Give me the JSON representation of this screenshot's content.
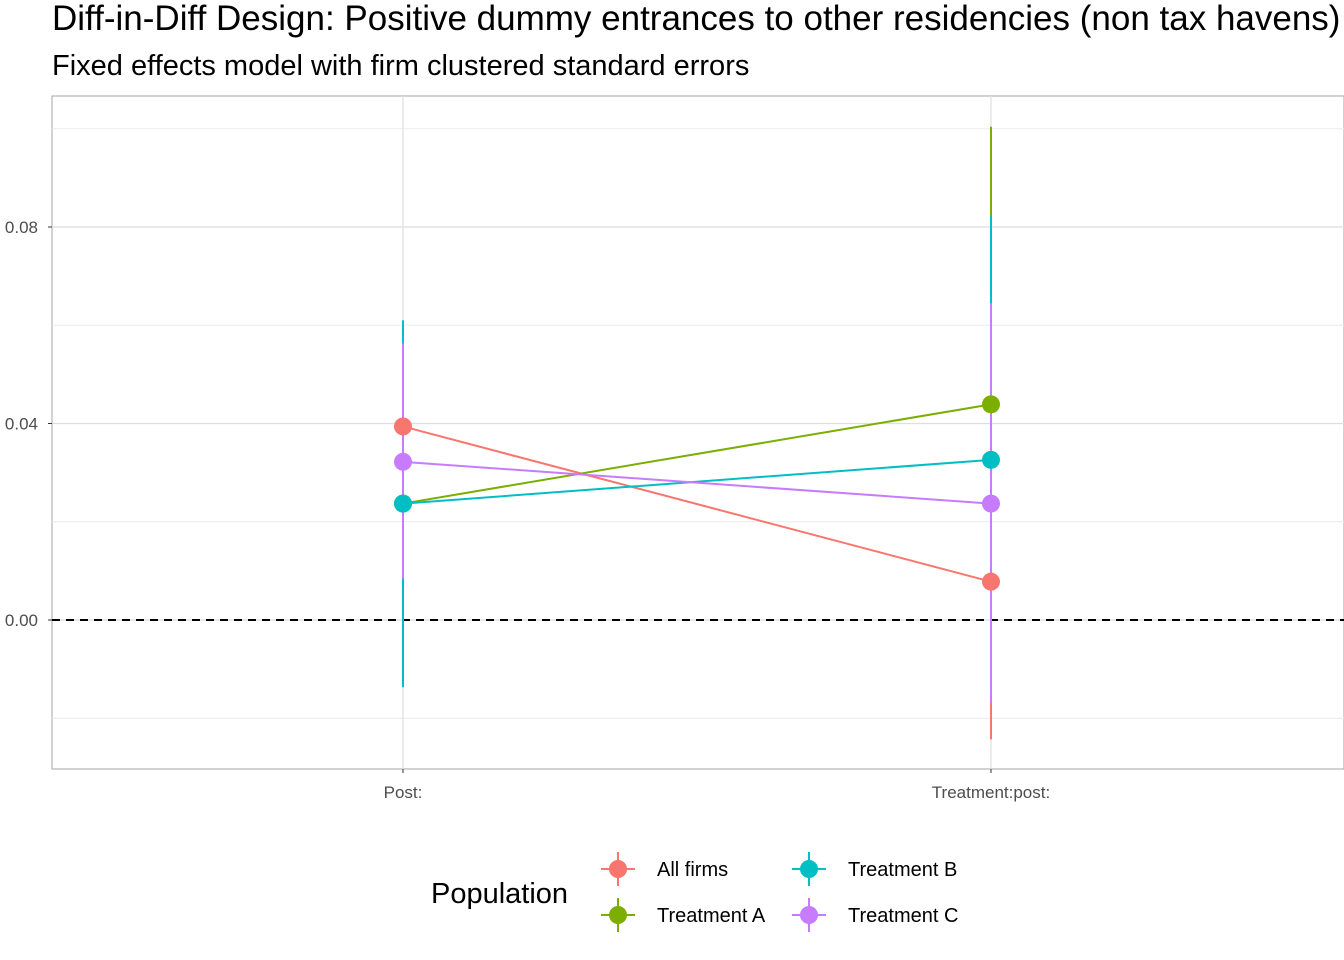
{
  "chart_data": {
    "type": "scatter",
    "title": "Diff-in-Diff Design: Positive dummy entrances to other residencies (non tax havens)",
    "subtitle": "Fixed effects model with firm clustered standard errors",
    "categories": [
      "Post:",
      "Treatment:post:"
    ],
    "y_ticks": [
      {
        "value": 0.0,
        "label": "0.00"
      },
      {
        "value": 0.04,
        "label": "0.04"
      },
      {
        "value": 0.08,
        "label": "0.08"
      }
    ],
    "ylim": [
      -0.03,
      0.107
    ],
    "reference_line": {
      "value": 0,
      "style": "dashed"
    },
    "grid": true,
    "legend": {
      "title": "Population",
      "position": "bottom"
    },
    "series": [
      {
        "name": "All firms",
        "color": "#F8766D",
        "values": [
          0.0394,
          0.0078
        ],
        "lower": [
          0.0226,
          -0.0243
        ],
        "upper": [
          0.0563,
          0.0399
        ]
      },
      {
        "name": "Treatment A",
        "color": "#7CAE00",
        "values": [
          0.0237,
          0.0439
        ],
        "lower": [
          0.0084,
          -0.0121
        ],
        "upper": [
          0.039,
          0.1004
        ]
      },
      {
        "name": "Treatment B",
        "color": "#00BFC4",
        "values": [
          0.0237,
          0.0326
        ],
        "lower": [
          -0.0137,
          -0.0168
        ],
        "upper": [
          0.061,
          0.0822
        ]
      },
      {
        "name": "Treatment C",
        "color": "#C77CFF",
        "values": [
          0.0322,
          0.0237
        ],
        "lower": [
          0.0084,
          -0.0168
        ],
        "upper": [
          0.0563,
          0.0645
        ]
      }
    ]
  }
}
